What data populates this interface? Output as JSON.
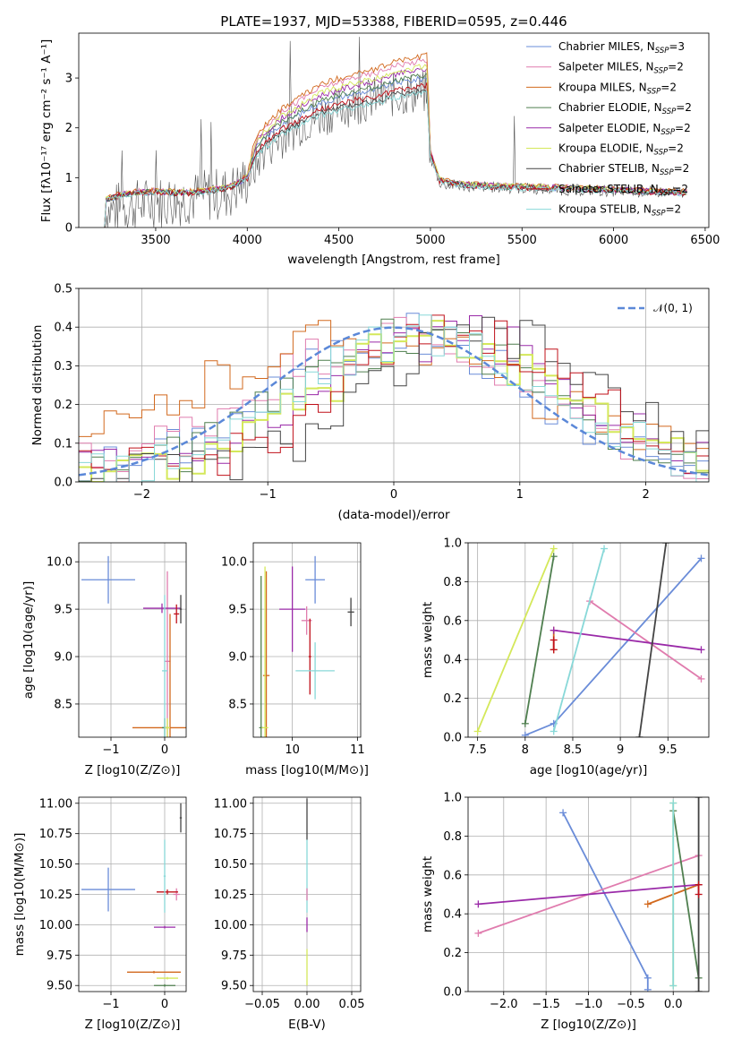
{
  "title": "PLATE=1937, MJD=53388, FIBERID=0595, z=0.446",
  "colors": {
    "Chabrier MILES": "#6a8cd8",
    "Salpeter MILES": "#e07cae",
    "Kroupa MILES": "#d2691e",
    "Chabrier ELODIE": "#4f7f4f",
    "Salpeter ELODIE": "#9a2aa8",
    "Kroupa ELODIE": "#d4e85a",
    "Chabrier STELIB": "#444444",
    "Salpeter STELIB": "#c0101a",
    "Kroupa STELIB": "#88d8d8",
    "data": "#555555",
    "normal": "#5b88d8"
  },
  "legend_spectrum": [
    {
      "key": "Chabrier MILES",
      "label": "Chabrier MILES, N",
      "nssp": "=3"
    },
    {
      "key": "Salpeter MILES",
      "label": "Salpeter MILES, N",
      "nssp": "=2"
    },
    {
      "key": "Kroupa MILES",
      "label": "Kroupa MILES, N",
      "nssp": "=2"
    },
    {
      "key": "Chabrier ELODIE",
      "label": "Chabrier ELODIE, N",
      "nssp": "=2"
    },
    {
      "key": "Salpeter ELODIE",
      "label": "Salpeter ELODIE, N",
      "nssp": "=2"
    },
    {
      "key": "Kroupa ELODIE",
      "label": "Kroupa ELODIE, N",
      "nssp": "=2"
    },
    {
      "key": "Chabrier STELIB",
      "label": "Chabrier STELIB, N",
      "nssp": "=2"
    },
    {
      "key": "Salpeter STELIB",
      "label": "Salpeter STELIB, N",
      "nssp": "=2"
    },
    {
      "key": "Kroupa STELIB",
      "label": "Kroupa STELIB, N",
      "nssp": "=2"
    }
  ],
  "nssp_sub": "SSP",
  "legend_normal": "𝒩(0, 1)",
  "chart_data": [
    {
      "id": "spectrum",
      "type": "line",
      "xlabel": "wavelength [Angstrom, rest frame]",
      "ylabel": "Flux [f_λ 10^-17 erg cm^-2 s^-1 A^-1]",
      "xlim": [
        3080,
        6520
      ],
      "ylim": [
        0,
        3.9
      ],
      "xticks": [
        3500,
        4000,
        4500,
        5000,
        5500,
        6000,
        6500
      ],
      "yticks": [
        0,
        1,
        2,
        3
      ],
      "model_continuum": {
        "x": [
          3220,
          3230,
          3300,
          3400,
          3500,
          3600,
          3700,
          3800,
          3900,
          4000,
          4050,
          4100,
          4200,
          4300,
          4400,
          4500,
          4600,
          4700,
          4800,
          4900,
          4980,
          5000,
          5050,
          5100,
          5200,
          5400,
          5600,
          5800,
          6000,
          6200,
          6400
        ],
        "y": [
          0.0,
          0.55,
          0.65,
          0.7,
          0.72,
          0.7,
          0.7,
          0.75,
          0.8,
          1.0,
          1.6,
          1.8,
          2.1,
          2.3,
          2.5,
          2.6,
          2.7,
          2.75,
          2.9,
          2.95,
          3.0,
          1.5,
          0.95,
          0.9,
          0.85,
          0.82,
          0.8,
          0.78,
          0.75,
          0.72,
          0.7
        ]
      },
      "model_scales": {
        "Chabrier MILES": 1.0,
        "Salpeter MILES": 1.12,
        "Kroupa MILES": 1.15,
        "Chabrier ELODIE": 1.02,
        "Salpeter ELODIE": 1.06,
        "Kroupa ELODIE": 1.08,
        "Chabrier STELIB": 0.92,
        "Salpeter STELIB": 0.95,
        "Kroupa STELIB": 0.9
      },
      "data_continuum": {
        "x": [
          3220,
          3230,
          3300,
          3500,
          3700,
          3900,
          4000,
          4100,
          4300,
          4500,
          4700,
          4900,
          4980,
          5000,
          5050,
          5100,
          5400,
          5800,
          6200,
          6400
        ],
        "y": [
          0.0,
          0.3,
          0.4,
          0.5,
          0.6,
          0.7,
          0.95,
          1.6,
          2.1,
          2.4,
          2.6,
          2.7,
          2.7,
          1.4,
          0.9,
          0.85,
          0.8,
          0.75,
          0.72,
          0.7
        ]
      }
    },
    {
      "id": "residual-histogram",
      "type": "line",
      "xlabel": "(data-model)/error",
      "ylabel": "Normed distribution",
      "xlim": [
        -2.5,
        2.5
      ],
      "ylim": [
        0,
        0.5
      ],
      "xticks": [
        -2,
        -1,
        0,
        1,
        2
      ],
      "xticklabels": [
        "−2",
        "−1",
        "0",
        "1",
        "2"
      ],
      "yticks": [
        0,
        0.1,
        0.2,
        0.3,
        0.4,
        0.5
      ],
      "bin_width": 0.1,
      "gaussian": {
        "mean": 0,
        "sigma": 1
      }
    },
    {
      "id": "age-vs-Z",
      "type": "scatter",
      "xlabel": "Z [log10(Z/Z⊙)]",
      "ylabel": "age  [log10(age/yr)]",
      "xlim": [
        -1.6,
        0.4
      ],
      "ylim": [
        8.15,
        10.2
      ],
      "xticks": [
        -1,
        0
      ],
      "xticklabels": [
        "−1",
        "0"
      ],
      "yticks": [
        8.5,
        9.0,
        9.5,
        10.0
      ],
      "points": [
        {
          "key": "Chabrier MILES",
          "x": -1.05,
          "y": 9.81,
          "xerr": 0.5,
          "yerr": 0.25
        },
        {
          "key": "Salpeter MILES",
          "x": 0.05,
          "y": 8.95,
          "xerr": 0.06,
          "yerr": 0.95
        },
        {
          "key": "Kroupa MILES",
          "x": 0.1,
          "y": 8.25,
          "xerr": 0.7,
          "yerr": 1.2
        },
        {
          "key": "Chabrier ELODIE",
          "x": 0.0,
          "y": 8.25,
          "xerr": 0.05,
          "yerr": 0.1
        },
        {
          "key": "Salpeter ELODIE",
          "x": -0.05,
          "y": 9.51,
          "xerr": 0.35,
          "yerr": 0.05
        },
        {
          "key": "Kroupa ELODIE",
          "x": 0.05,
          "y": 8.25,
          "xerr": 0.05,
          "yerr": 0.1
        },
        {
          "key": "Chabrier STELIB",
          "x": 0.3,
          "y": 9.5,
          "xerr": 0.02,
          "yerr": 0.15
        },
        {
          "key": "Salpeter STELIB",
          "x": 0.22,
          "y": 9.45,
          "xerr": 0.05,
          "yerr": 0.1
        },
        {
          "key": "Kroupa STELIB",
          "x": 0.0,
          "y": 8.85,
          "xerr": 0.05,
          "yerr": 0.8
        }
      ]
    },
    {
      "id": "age-vs-mass",
      "type": "scatter",
      "xlabel": "mass [log10(M/M⊙)]",
      "ylabel": "",
      "xlim": [
        9.4,
        11.05
      ],
      "ylim": [
        8.15,
        10.2
      ],
      "xticks": [
        9,
        10,
        11
      ],
      "yticks": [
        8.5,
        9.0,
        9.5,
        10.0
      ],
      "points": [
        {
          "key": "Chabrier MILES",
          "x": 10.35,
          "y": 9.81,
          "xerr": 0.15,
          "yerr": 0.25
        },
        {
          "key": "Salpeter MILES",
          "x": 10.22,
          "y": 9.38,
          "xerr": 0.08,
          "yerr": 0.15
        },
        {
          "key": "Kroupa MILES",
          "x": 9.6,
          "y": 8.8,
          "xerr": 0.05,
          "yerr": 1.1
        },
        {
          "key": "Chabrier ELODIE",
          "x": 9.52,
          "y": 8.25,
          "xerr": 0.03,
          "yerr": 1.6
        },
        {
          "key": "Salpeter ELODIE",
          "x": 10.0,
          "y": 9.5,
          "xerr": 0.2,
          "yerr": 0.45
        },
        {
          "key": "Kroupa ELODIE",
          "x": 9.58,
          "y": 8.25,
          "xerr": 0.05,
          "yerr": 1.7
        },
        {
          "key": "Chabrier STELIB",
          "x": 10.9,
          "y": 9.47,
          "xerr": 0.05,
          "yerr": 0.15
        },
        {
          "key": "Salpeter STELIB",
          "x": 10.27,
          "y": 9.0,
          "xerr": 0.02,
          "yerr": 0.4
        },
        {
          "key": "Kroupa STELIB",
          "x": 10.35,
          "y": 8.85,
          "xerr": 0.3,
          "yerr": 0.3
        }
      ]
    },
    {
      "id": "weight-vs-age",
      "type": "line",
      "xlabel": "age  [log10(age/yr)]",
      "ylabel": "mass weight",
      "xlim": [
        7.4,
        9.93
      ],
      "ylim": [
        0,
        1
      ],
      "xticks": [
        7.5,
        8.0,
        8.5,
        9.0,
        9.5
      ],
      "yticks": [
        0,
        0.2,
        0.4,
        0.6,
        0.8,
        1.0
      ],
      "series": [
        {
          "key": "Chabrier MILES",
          "x": [
            8.0,
            8.3,
            9.85
          ],
          "y": [
            0.01,
            0.07,
            0.92
          ]
        },
        {
          "key": "Salpeter MILES",
          "x": [
            8.68,
            9.85
          ],
          "y": [
            0.7,
            0.3
          ]
        },
        {
          "key": "Kroupa MILES",
          "x": [
            8.3,
            8.3
          ],
          "y": [
            0.45,
            0.55
          ]
        },
        {
          "key": "Chabrier ELODIE",
          "x": [
            8.0,
            8.3
          ],
          "y": [
            0.07,
            0.93
          ]
        },
        {
          "key": "Salpeter ELODIE",
          "x": [
            8.3,
            9.85
          ],
          "y": [
            0.55,
            0.45
          ]
        },
        {
          "key": "Kroupa ELODIE",
          "x": [
            7.5,
            8.3
          ],
          "y": [
            0.03,
            0.97
          ]
        },
        {
          "key": "Chabrier STELIB",
          "x": [
            9.2,
            9.48
          ],
          "y": [
            0.0,
            1.0
          ]
        },
        {
          "key": "Salpeter STELIB",
          "x": [
            8.3,
            8.3
          ],
          "y": [
            0.45,
            0.5
          ]
        },
        {
          "key": "Kroupa STELIB",
          "x": [
            8.3,
            8.83
          ],
          "y": [
            0.03,
            0.97
          ]
        }
      ]
    },
    {
      "id": "mass-vs-Z",
      "type": "scatter",
      "xlabel": "Z [log10(Z/Z⊙)]",
      "ylabel": "mass [log10(M/M⊙)]",
      "xlim": [
        -1.6,
        0.4
      ],
      "ylim": [
        9.45,
        11.05
      ],
      "xticks": [
        -1,
        0
      ],
      "xticklabels": [
        "−1",
        "0"
      ],
      "yticks": [
        9.5,
        9.75,
        10.0,
        10.25,
        10.5,
        10.75,
        11.0
      ],
      "points": [
        {
          "key": "Chabrier MILES",
          "x": -1.05,
          "y": 10.29,
          "xerr": 0.5,
          "yerr": 0.18
        },
        {
          "key": "Salpeter MILES",
          "x": 0.22,
          "y": 10.25,
          "xerr": 0.06,
          "yerr": 0.05
        },
        {
          "key": "Kroupa MILES",
          "x": -0.2,
          "y": 9.61,
          "xerr": 0.5,
          "yerr": 0.01
        },
        {
          "key": "Chabrier ELODIE",
          "x": 0.0,
          "y": 9.5,
          "xerr": 0.2,
          "yerr": 0.01
        },
        {
          "key": "Salpeter ELODIE",
          "x": 0.0,
          "y": 9.98,
          "xerr": 0.2,
          "yerr": 0.01
        },
        {
          "key": "Kroupa ELODIE",
          "x": 0.05,
          "y": 9.56,
          "xerr": 0.2,
          "yerr": 0.01
        },
        {
          "key": "Chabrier STELIB",
          "x": 0.3,
          "y": 10.88,
          "xerr": 0.02,
          "yerr": 0.12
        },
        {
          "key": "Salpeter STELIB",
          "x": 0.05,
          "y": 10.27,
          "xerr": 0.2,
          "yerr": 0.02
        },
        {
          "key": "Kroupa STELIB",
          "x": 0.0,
          "y": 10.4,
          "xerr": 0.02,
          "yerr": 0.3
        }
      ]
    },
    {
      "id": "mass-vs-EBV",
      "type": "scatter",
      "xlabel": "E(B-V)",
      "ylabel": "",
      "xlim": [
        -0.06,
        0.06
      ],
      "ylim": [
        9.45,
        11.05
      ],
      "xticks": [
        -0.05,
        0.0,
        0.05
      ],
      "xticklabels": [
        "−0.05",
        "0.00",
        "0.05"
      ],
      "yticks": [
        9.5,
        9.75,
        10.0,
        10.25,
        10.5,
        10.75,
        11.0
      ],
      "points": [
        {
          "key": "Chabrier STELIB",
          "x": 0.0,
          "y": 10.87,
          "xerr": 0,
          "yerr": 0.17
        },
        {
          "key": "Kroupa STELIB",
          "x": 0.0,
          "y": 10.4,
          "xerr": 0,
          "yerr": 0.3
        },
        {
          "key": "Salpeter MILES",
          "x": 0.0,
          "y": 10.25,
          "xerr": 0,
          "yerr": 0.05
        },
        {
          "key": "Salpeter ELODIE",
          "x": 0.0,
          "y": 10.0,
          "xerr": 0,
          "yerr": 0.06
        },
        {
          "key": "Kroupa ELODIE",
          "x": 0.0,
          "y": 9.65,
          "xerr": 0,
          "yerr": 0.15
        }
      ]
    },
    {
      "id": "weight-vs-Z",
      "type": "line",
      "xlabel": "Z [log10(Z/Z⊙)]",
      "ylabel": "mass weight",
      "xlim": [
        -2.42,
        0.42
      ],
      "ylim": [
        0,
        1
      ],
      "xticks": [
        -2.0,
        -1.5,
        -1.0,
        -0.5,
        0.0
      ],
      "xticklabels": [
        "−2.0",
        "−1.5",
        "−1.0",
        "−0.5",
        "0.0"
      ],
      "yticks": [
        0,
        0.2,
        0.4,
        0.6,
        0.8,
        1.0
      ],
      "series": [
        {
          "key": "Chabrier MILES",
          "x": [
            -1.3,
            -0.3,
            -0.3
          ],
          "y": [
            0.92,
            0.07,
            0.01
          ]
        },
        {
          "key": "Salpeter MILES",
          "x": [
            -2.3,
            0.3
          ],
          "y": [
            0.3,
            0.7
          ]
        },
        {
          "key": "Kroupa MILES",
          "x": [
            -0.3,
            0.3
          ],
          "y": [
            0.45,
            0.55
          ]
        },
        {
          "key": "Chabrier ELODIE",
          "x": [
            0.0,
            0.3
          ],
          "y": [
            0.93,
            0.07
          ]
        },
        {
          "key": "Salpeter ELODIE",
          "x": [
            -2.3,
            0.3
          ],
          "y": [
            0.45,
            0.55
          ]
        },
        {
          "key": "Kroupa ELODIE",
          "x": [
            0.0,
            0.0
          ],
          "y": [
            0.03,
            0.97
          ]
        },
        {
          "key": "Chabrier STELIB",
          "x": [
            0.3,
            0.3
          ],
          "y": [
            0.0,
            1.0
          ]
        },
        {
          "key": "Salpeter STELIB",
          "x": [
            0.3,
            0.3
          ],
          "y": [
            0.5,
            0.55
          ]
        },
        {
          "key": "Kroupa STELIB",
          "x": [
            0.0,
            0.0
          ],
          "y": [
            0.03,
            0.97
          ]
        }
      ]
    }
  ]
}
